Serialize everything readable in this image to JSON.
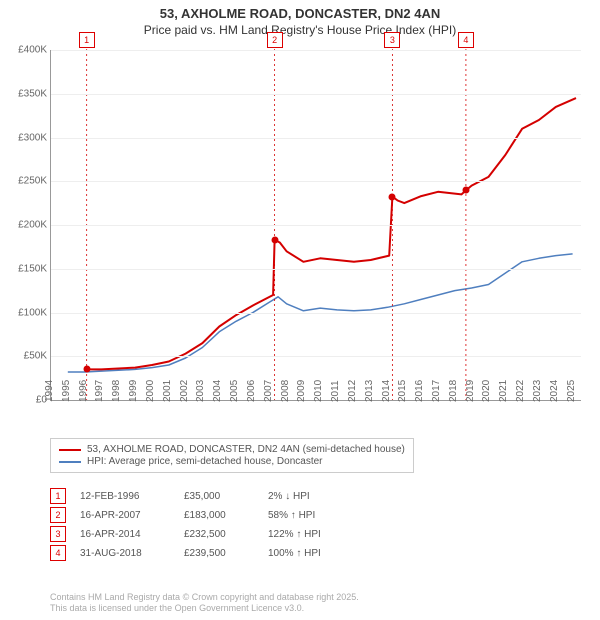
{
  "title_main": "53, AXHOLME ROAD, DONCASTER, DN2 4AN",
  "title_sub": "Price paid vs. HM Land Registry's House Price Index (HPI)",
  "colors": {
    "price_line": "#d40000",
    "hpi_line": "#4f7fbf",
    "marker_border": "#d40000",
    "marker_dash": "#d40000",
    "grid": "#eeeeee",
    "axis": "#999999"
  },
  "chart": {
    "xmin": 1994,
    "xmax": 2025.5,
    "ymin": 0,
    "ymax": 400000,
    "yticks": [
      0,
      50000,
      100000,
      150000,
      200000,
      250000,
      300000,
      350000,
      400000
    ],
    "ytick_labels": [
      "£0",
      "£50K",
      "£100K",
      "£150K",
      "£200K",
      "£250K",
      "£300K",
      "£350K",
      "£400K"
    ],
    "xticks": [
      1994,
      1995,
      1996,
      1997,
      1998,
      1999,
      2000,
      2001,
      2002,
      2003,
      2004,
      2005,
      2006,
      2007,
      2008,
      2009,
      2010,
      2011,
      2012,
      2013,
      2014,
      2015,
      2016,
      2017,
      2018,
      2019,
      2020,
      2021,
      2022,
      2023,
      2024,
      2025
    ]
  },
  "hpi_series": [
    [
      1995,
      32000
    ],
    [
      1996,
      32000
    ],
    [
      1997,
      33000
    ],
    [
      1998,
      34000
    ],
    [
      1999,
      35000
    ],
    [
      2000,
      37000
    ],
    [
      2001,
      40000
    ],
    [
      2002,
      48000
    ],
    [
      2003,
      60000
    ],
    [
      2004,
      78000
    ],
    [
      2005,
      90000
    ],
    [
      2006,
      100000
    ],
    [
      2007,
      112000
    ],
    [
      2007.5,
      118000
    ],
    [
      2008,
      110000
    ],
    [
      2009,
      102000
    ],
    [
      2010,
      105000
    ],
    [
      2011,
      103000
    ],
    [
      2012,
      102000
    ],
    [
      2013,
      103000
    ],
    [
      2014,
      106000
    ],
    [
      2015,
      110000
    ],
    [
      2016,
      115000
    ],
    [
      2017,
      120000
    ],
    [
      2018,
      125000
    ],
    [
      2019,
      128000
    ],
    [
      2020,
      132000
    ],
    [
      2021,
      145000
    ],
    [
      2022,
      158000
    ],
    [
      2023,
      162000
    ],
    [
      2024,
      165000
    ],
    [
      2025,
      167000
    ]
  ],
  "price_series": [
    [
      1996.12,
      35000
    ],
    [
      1997,
      35000
    ],
    [
      1998,
      36000
    ],
    [
      1999,
      37000
    ],
    [
      2000,
      40000
    ],
    [
      2001,
      44000
    ],
    [
      2002,
      53000
    ],
    [
      2003,
      65000
    ],
    [
      2004,
      84000
    ],
    [
      2005,
      97000
    ],
    [
      2006,
      108000
    ],
    [
      2007.2,
      120000
    ],
    [
      2007.29,
      183000
    ],
    [
      2007.6,
      180000
    ],
    [
      2008,
      170000
    ],
    [
      2009,
      158000
    ],
    [
      2010,
      162000
    ],
    [
      2011,
      160000
    ],
    [
      2012,
      158000
    ],
    [
      2013,
      160000
    ],
    [
      2014.1,
      165000
    ],
    [
      2014.29,
      232500
    ],
    [
      2014.6,
      228000
    ],
    [
      2015,
      225000
    ],
    [
      2016,
      233000
    ],
    [
      2017,
      238000
    ],
    [
      2018.4,
      235000
    ],
    [
      2018.66,
      239500
    ],
    [
      2019,
      245000
    ],
    [
      2020,
      255000
    ],
    [
      2021,
      280000
    ],
    [
      2022,
      310000
    ],
    [
      2023,
      320000
    ],
    [
      2024,
      335000
    ],
    [
      2025.2,
      345000
    ]
  ],
  "sale_points": [
    {
      "x": 1996.12,
      "y": 35000
    },
    {
      "x": 2007.29,
      "y": 183000
    },
    {
      "x": 2014.29,
      "y": 232500
    },
    {
      "x": 2018.66,
      "y": 239500
    }
  ],
  "markers": [
    {
      "num": "1",
      "x": 1996.12,
      "y_top": 34
    },
    {
      "num": "2",
      "x": 2007.29,
      "y_top": 34
    },
    {
      "num": "3",
      "x": 2014.29,
      "y_top": 34
    },
    {
      "num": "4",
      "x": 2018.66,
      "y_top": 34
    }
  ],
  "legend": [
    {
      "label": "53, AXHOLME ROAD, DONCASTER, DN2 4AN (semi-detached house)",
      "color": "#d40000"
    },
    {
      "label": "HPI: Average price, semi-detached house, Doncaster",
      "color": "#4f7fbf"
    }
  ],
  "events": [
    {
      "num": "1",
      "date": "12-FEB-1996",
      "price": "£35,000",
      "rel": "2% ↓ HPI"
    },
    {
      "num": "2",
      "date": "16-APR-2007",
      "price": "£183,000",
      "rel": "58% ↑ HPI"
    },
    {
      "num": "3",
      "date": "16-APR-2014",
      "price": "£232,500",
      "rel": "122% ↑ HPI"
    },
    {
      "num": "4",
      "date": "31-AUG-2018",
      "price": "£239,500",
      "rel": "100% ↑ HPI"
    }
  ],
  "footer_l1": "Contains HM Land Registry data © Crown copyright and database right 2025.",
  "footer_l2": "This data is licensed under the Open Government Licence v3.0."
}
